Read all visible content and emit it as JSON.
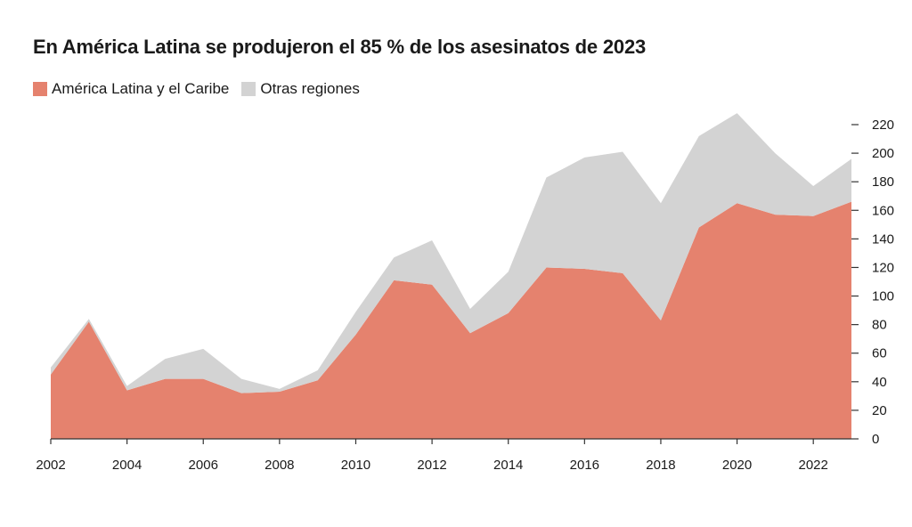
{
  "title": "En América Latina se produjeron el 85 % de los asesinatos de 2023",
  "colors": {
    "latam": "#e5826e",
    "other": "#d3d3d3",
    "axis": "#333333"
  },
  "chart_data": {
    "type": "area",
    "stacked": true,
    "title": "En América Latina se produjeron el 85 % de los asesinatos de 2023",
    "xlabel": "",
    "ylabel": "",
    "x": [
      2002,
      2003,
      2004,
      2005,
      2006,
      2007,
      2008,
      2009,
      2010,
      2011,
      2012,
      2013,
      2014,
      2015,
      2016,
      2017,
      2018,
      2019,
      2020,
      2021,
      2022,
      2023
    ],
    "x_ticks": [
      "2002",
      "2004",
      "2006",
      "2008",
      "2010",
      "2012",
      "2014",
      "2016",
      "2018",
      "2020",
      "2022"
    ],
    "y_ticks": [
      "0",
      "20",
      "40",
      "60",
      "80",
      "100",
      "120",
      "140",
      "160",
      "180",
      "200",
      "220"
    ],
    "ylim": [
      0,
      220
    ],
    "y_axis_side": "right",
    "legend_position": "top-left",
    "grid": false,
    "series": [
      {
        "name": "América Latina y el Caribe",
        "color": "#e5826e",
        "values": [
          45,
          82,
          34,
          42,
          42,
          32,
          33,
          41,
          73,
          111,
          108,
          74,
          88,
          120,
          119,
          116,
          83,
          148,
          165,
          157,
          156,
          166
        ]
      },
      {
        "name": "Otras regiones",
        "color": "#d3d3d3",
        "values": [
          5,
          2,
          3,
          14,
          21,
          10,
          2,
          7,
          16,
          16,
          31,
          17,
          29,
          63,
          78,
          85,
          82,
          64,
          63,
          43,
          21,
          30
        ]
      }
    ]
  }
}
